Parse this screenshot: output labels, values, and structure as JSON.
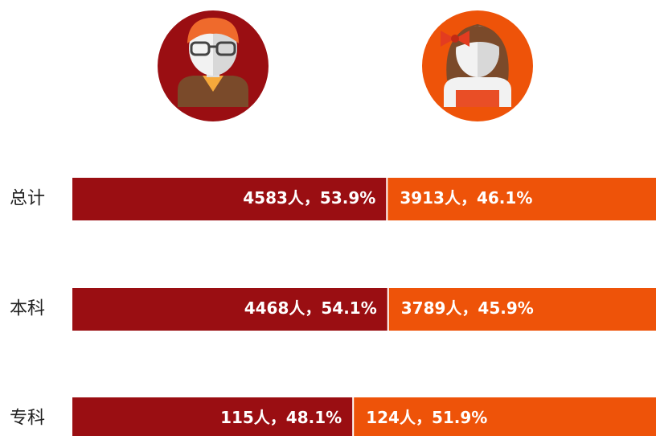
{
  "chart_data": {
    "type": "stacked-bar-100",
    "categories": [
      "总计",
      "本科",
      "专科"
    ],
    "series": [
      {
        "color": "#9a0e12",
        "values": [
          53.9,
          54.1,
          48.1
        ],
        "value_labels": [
          "4583人，53.9%",
          "4468人，54.1%",
          "115人，48.1%"
        ]
      },
      {
        "color": "#ee5309",
        "values": [
          46.1,
          45.9,
          51.9
        ],
        "value_labels": [
          "3913人，46.1%",
          "3789人，45.9%",
          "124人，51.9%"
        ]
      }
    ]
  }
}
